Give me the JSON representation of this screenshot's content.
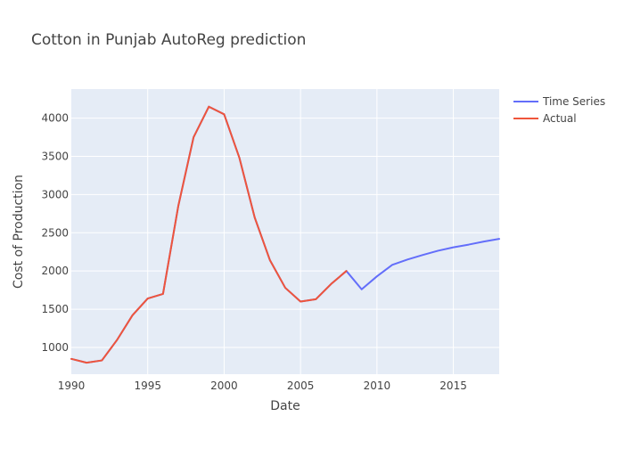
{
  "chart_data": {
    "type": "line",
    "title": "Cotton in Punjab AutoReg prediction",
    "xlabel": "Date",
    "ylabel": "Cost of Production",
    "xlim": [
      1990,
      2018
    ],
    "ylim": [
      650,
      4380
    ],
    "x_ticks": [
      1990,
      1995,
      2000,
      2005,
      2010,
      2015
    ],
    "x_tick_labels": [
      "1990",
      "1995",
      "2000",
      "2005",
      "2010",
      "2015"
    ],
    "y_ticks": [
      1000,
      1500,
      2000,
      2500,
      3000,
      3500,
      4000
    ],
    "y_tick_labels": [
      "1000",
      "1500",
      "2000",
      "2500",
      "3000",
      "3500",
      "4000"
    ],
    "grid": true,
    "legend_position": "top-right",
    "plot_background": "#e5ecf6",
    "series": [
      {
        "name": "Time Series",
        "color": "#636efa",
        "x": [
          1990,
          1991,
          1992,
          1993,
          1994,
          1995,
          1996,
          1997,
          1998,
          1999,
          2000,
          2001,
          2002,
          2003,
          2004,
          2005,
          2006,
          2007,
          2008,
          2009,
          2010,
          2011,
          2012,
          2013,
          2014,
          2015,
          2016,
          2017,
          2018
        ],
        "y": [
          850,
          800,
          830,
          1100,
          1420,
          1640,
          1700,
          2850,
          3750,
          4150,
          4050,
          3480,
          2700,
          2140,
          1780,
          1600,
          1630,
          1830,
          2000,
          1760,
          1930,
          2080,
          2150,
          2210,
          2265,
          2310,
          2345,
          2385,
          2420
        ]
      },
      {
        "name": "Actual",
        "color": "#ef553b",
        "x": [
          1990,
          1991,
          1992,
          1993,
          1994,
          1995,
          1996,
          1997,
          1998,
          1999,
          2000,
          2001,
          2002,
          2003,
          2004,
          2005,
          2006,
          2007,
          2008
        ],
        "y": [
          850,
          800,
          830,
          1100,
          1420,
          1640,
          1700,
          2850,
          3750,
          4150,
          4050,
          3480,
          2700,
          2140,
          1780,
          1600,
          1630,
          1830,
          2000
        ]
      }
    ]
  }
}
